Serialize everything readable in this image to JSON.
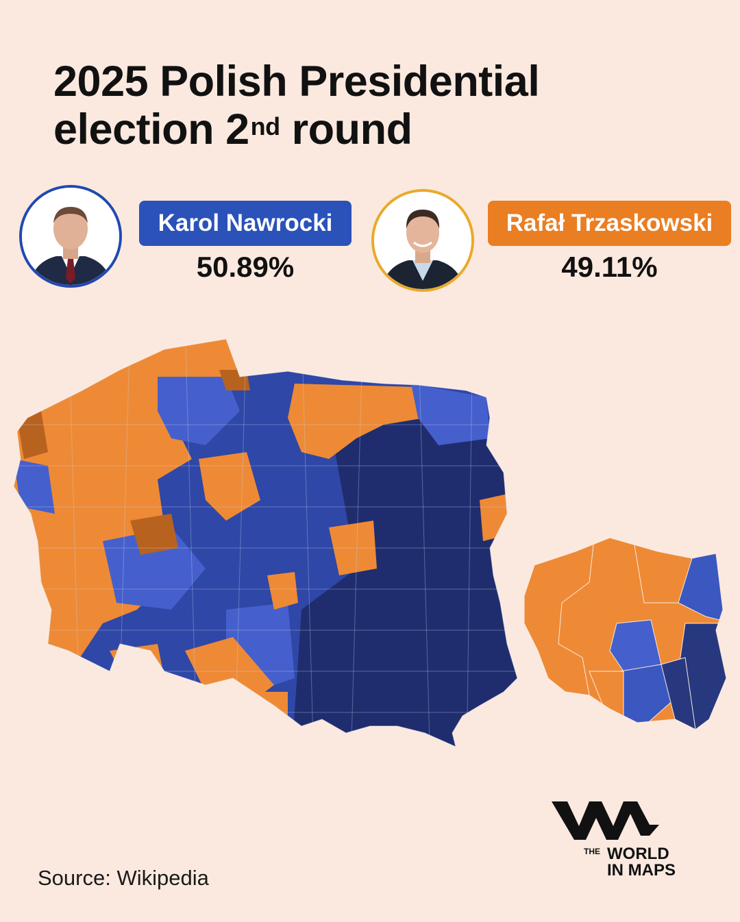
{
  "title": {
    "line1": "2025 Polish Presidential",
    "line2_pre": "election 2",
    "line2_sup": "nd",
    "line2_post": " round"
  },
  "candidates": [
    {
      "name": "Karol Nawrocki",
      "percent": "50.89%",
      "color": "#2a52b9",
      "ring_color": "#2149b3"
    },
    {
      "name": "Rafał Trzaskowski",
      "percent": "49.11%",
      "color": "#ea7e22",
      "ring_color": "#e9a92a"
    }
  ],
  "legend_colors": {
    "nawrocki_light": "#4560cc",
    "nawrocki_mid": "#2f47a6",
    "nawrocki_dark": "#1f2d6e",
    "trzaskowski_light": "#ee8a35",
    "trzaskowski_dark": "#b8621f"
  },
  "source": "Source: Wikipedia",
  "logo": {
    "the": "THE",
    "line1": "WORLD",
    "line2": "IN MAPS"
  }
}
